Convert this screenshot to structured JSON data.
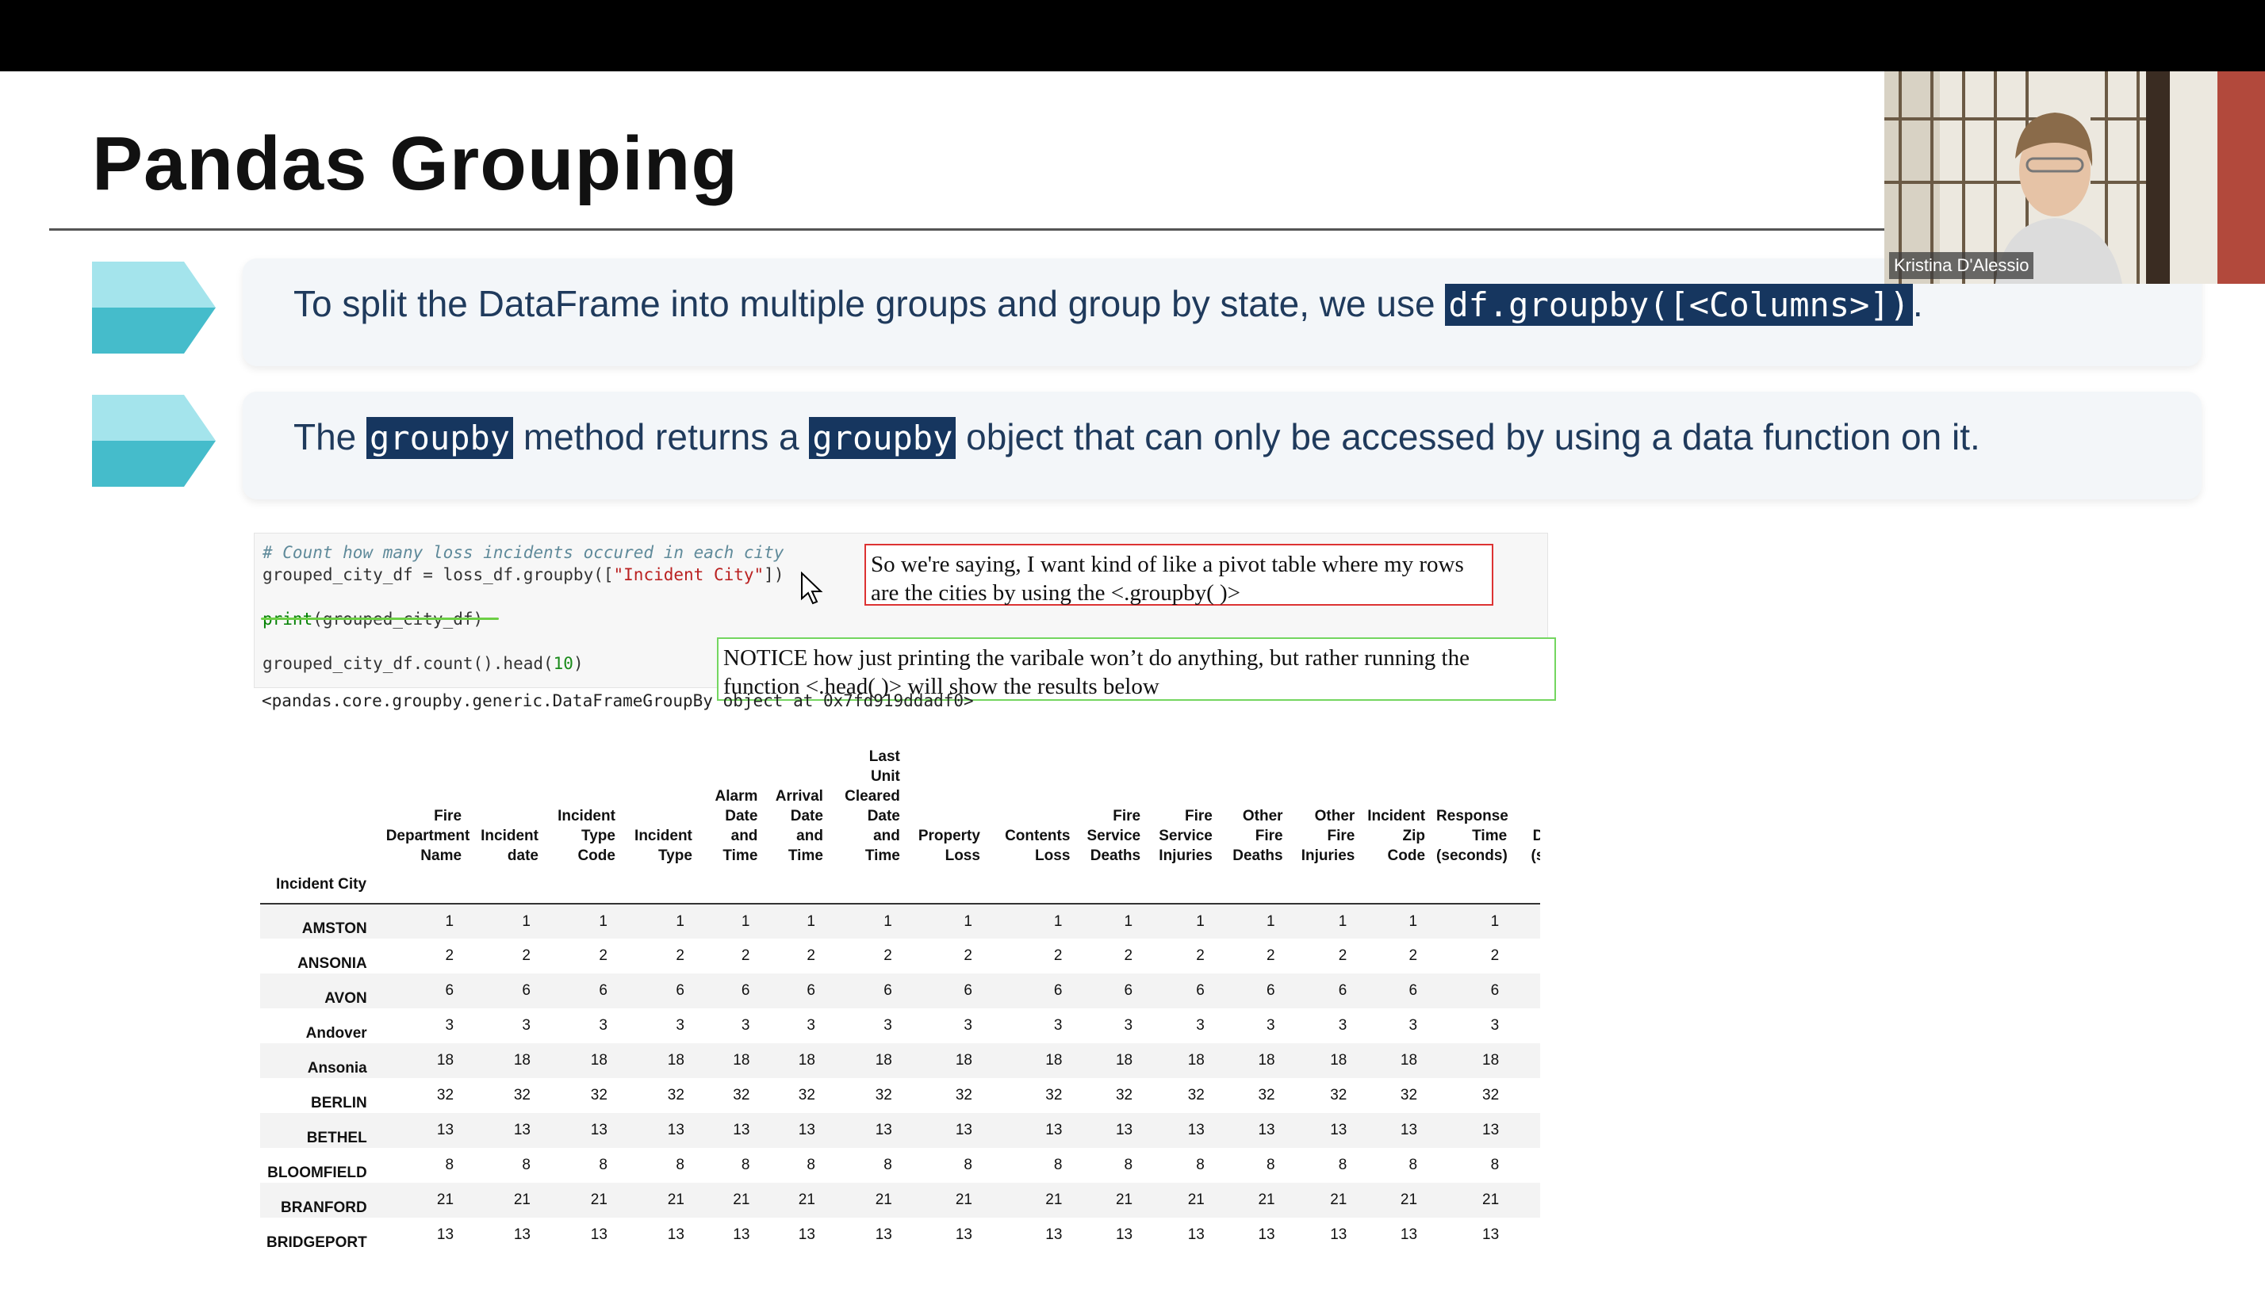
{
  "slide": {
    "title": "Pandas Grouping",
    "bullets": [
      {
        "before": "To split the DataFrame into multiple groups and group by state, we use ",
        "code": "df.groupby([<Columns>])",
        "after": "."
      },
      {
        "part1": "The ",
        "code1": "groupby",
        "part2": " method returns a ",
        "code2": "groupby",
        "part3": " object that can only be accessed by using a data function on it."
      }
    ],
    "accent_colors": {
      "arrow_light": "#a4e4ec",
      "arrow_dark": "#45bccb",
      "highlight": "#16365f",
      "text": "#1f3a5c"
    }
  },
  "webcam": {
    "name": "Kristina D'Alessio"
  },
  "code_cell": {
    "comment": "# Count how many loss incidents occured in each city",
    "line2_a": "grouped_city_df = loss_df.groupby([",
    "line2_str": "\"Incident City\"",
    "line2_b": "])",
    "line3_fn": "print",
    "line3_rest": "(grouped_city_df)",
    "line4_a": "grouped_city_df.count().head(",
    "line4_num": "10",
    "line4_b": ")"
  },
  "annotations": {
    "red_note": "So we're saying, I want kind of like a pivot table where my rows are the cities by using the <.groupby( )>",
    "green_note": "NOTICE how just printing the varibale won’t do anything, but rather running the function <.head( )> will show the results below"
  },
  "output_text": "<pandas.core.groupby.generic.DataFrameGroupBy object at 0x7fd919ddadf0>",
  "dataframe": {
    "index_name": "Incident City",
    "columns": [
      "Fire Department Name",
      "Incident date",
      "Incident Type Code",
      "Incident Type",
      "Alarm Date and Time",
      "Arrival Date and Time",
      "Last Unit Cleared Date and Time",
      "Property Loss",
      "Contents Loss",
      "Fire Service Deaths",
      "Fire Service Injuries",
      "Other Fire Deaths",
      "Other Fire Injuries",
      "Incident Zip Code",
      "Response Time (seconds)",
      "In Du (se"
    ],
    "rows": [
      {
        "city": "AMSTON",
        "values": [
          "1",
          "1",
          "1",
          "1",
          "1",
          "1",
          "1",
          "1",
          "1",
          "1",
          "1",
          "1",
          "1",
          "1",
          "1",
          ""
        ]
      },
      {
        "city": "ANSONIA",
        "values": [
          "2",
          "2",
          "2",
          "2",
          "2",
          "2",
          "2",
          "2",
          "2",
          "2",
          "2",
          "2",
          "2",
          "2",
          "2",
          ""
        ]
      },
      {
        "city": "AVON",
        "values": [
          "6",
          "6",
          "6",
          "6",
          "6",
          "6",
          "6",
          "6",
          "6",
          "6",
          "6",
          "6",
          "6",
          "6",
          "6",
          ""
        ]
      },
      {
        "city": "Andover",
        "values": [
          "3",
          "3",
          "3",
          "3",
          "3",
          "3",
          "3",
          "3",
          "3",
          "3",
          "3",
          "3",
          "3",
          "3",
          "3",
          ""
        ]
      },
      {
        "city": "Ansonia",
        "values": [
          "18",
          "18",
          "18",
          "18",
          "18",
          "18",
          "18",
          "18",
          "18",
          "18",
          "18",
          "18",
          "18",
          "18",
          "18",
          ""
        ]
      },
      {
        "city": "BERLIN",
        "values": [
          "32",
          "32",
          "32",
          "32",
          "32",
          "32",
          "32",
          "32",
          "32",
          "32",
          "32",
          "32",
          "32",
          "32",
          "32",
          ""
        ]
      },
      {
        "city": "BETHEL",
        "values": [
          "13",
          "13",
          "13",
          "13",
          "13",
          "13",
          "13",
          "13",
          "13",
          "13",
          "13",
          "13",
          "13",
          "13",
          "13",
          ""
        ]
      },
      {
        "city": "BLOOMFIELD",
        "values": [
          "8",
          "8",
          "8",
          "8",
          "8",
          "8",
          "8",
          "8",
          "8",
          "8",
          "8",
          "8",
          "8",
          "8",
          "8",
          ""
        ]
      },
      {
        "city": "BRANFORD",
        "values": [
          "21",
          "21",
          "21",
          "21",
          "21",
          "21",
          "21",
          "21",
          "21",
          "21",
          "21",
          "21",
          "21",
          "21",
          "21",
          ""
        ]
      },
      {
        "city": "BRIDGEPORT",
        "values": [
          "13",
          "13",
          "13",
          "13",
          "13",
          "13",
          "13",
          "13",
          "13",
          "13",
          "13",
          "13",
          "13",
          "13",
          "13",
          ""
        ]
      }
    ]
  }
}
